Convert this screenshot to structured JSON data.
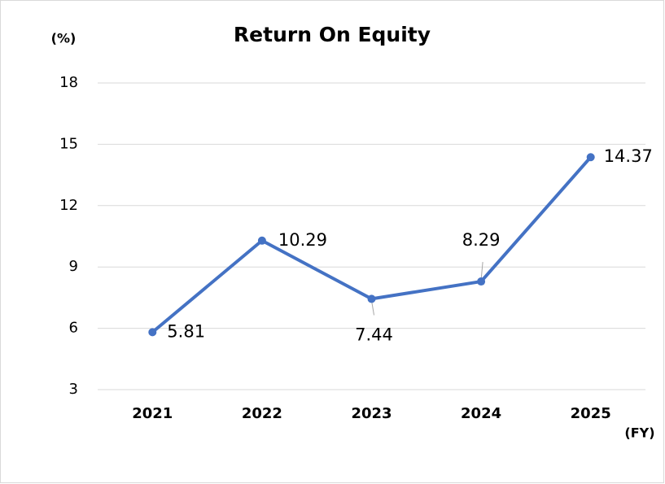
{
  "chart_data": {
    "type": "line",
    "title": "Return On Equity",
    "y_label": "(%)",
    "x_label": "(FY)",
    "categories": [
      "2021",
      "2022",
      "2023",
      "2024",
      "2025"
    ],
    "values": [
      5.81,
      10.29,
      7.44,
      8.29,
      14.37
    ],
    "color": "#4472c4",
    "ylim": [
      3,
      18
    ],
    "yticks": [
      3,
      6,
      9,
      12,
      15,
      18
    ],
    "grid": true
  }
}
